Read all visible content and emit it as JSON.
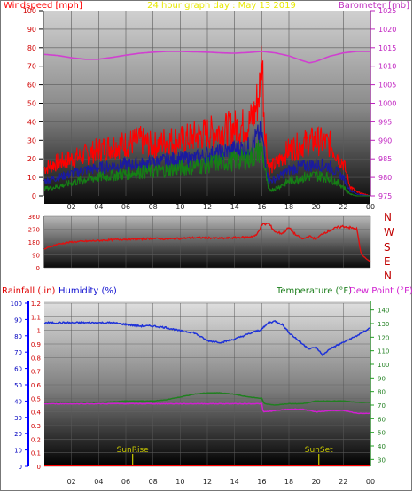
{
  "header": {
    "wind_label": "Windspeed [mph]",
    "title": "24 hour graph day : May 13 2019",
    "baro_label": "Barometer [mb]"
  },
  "wind_direction_letters": [
    "N",
    "W",
    "S",
    "E",
    "N"
  ],
  "lower_labels": {
    "rain": "Rainfall (.in)",
    "humidity": "Humidity (%)",
    "temperature": "Temperature (°F)",
    "dewpoint": "Dew Point (°F)"
  },
  "sun_labels": {
    "sunrise": "SunRise",
    "sunset": "SunSet"
  },
  "colors": {
    "wind_gust": "#ff0000",
    "wind_avg": "#1a1aa0",
    "wind_low": "#158015",
    "barometer": "#d040d0",
    "wind_dir": "#e01010",
    "humidity": "#1e32d8",
    "temperature": "#208020",
    "dewpoint": "#d020d0",
    "rain": "#ff0000",
    "title": "#e8e800",
    "sun": "#c8c800"
  },
  "chart_data": [
    {
      "type": "line",
      "title": "24 hour graph day : May 13 2019",
      "ylabel": "Windspeed [mph]",
      "y2label": "Barometer [mb]",
      "x_ticks": [
        "02",
        "04",
        "06",
        "08",
        "10",
        "12",
        "14",
        "16",
        "18",
        "20",
        "22",
        "00"
      ],
      "y_ticks": [
        "0",
        "10",
        "20",
        "30",
        "40",
        "50",
        "60",
        "70",
        "80",
        "90",
        "100"
      ],
      "y2_ticks": [
        "975",
        "980",
        "985",
        "990",
        "995",
        "1000",
        "1005",
        "1010",
        "1015",
        "1020",
        "1025"
      ],
      "xlim": [
        0,
        24
      ],
      "ylim": [
        0,
        100
      ],
      "y2lim": [
        975,
        1025
      ],
      "series": [
        {
          "axis": "left",
          "color": "#ff0000",
          "x": [
            0,
            1,
            2,
            3,
            4,
            5,
            6,
            7,
            8,
            9,
            10,
            11,
            12,
            13,
            14,
            15,
            15.5,
            15.9,
            16,
            16.2,
            16.5,
            17,
            18,
            19,
            20,
            21,
            22,
            22.5,
            23,
            23.5,
            24
          ],
          "y": [
            15,
            18,
            20,
            22,
            25,
            27,
            28,
            30,
            27,
            30,
            30,
            32,
            34,
            35,
            37,
            38,
            45,
            60,
            80,
            40,
            15,
            17,
            25,
            28,
            30,
            28,
            18,
            5,
            2,
            1,
            0
          ]
        },
        {
          "axis": "left",
          "color": "#1a1aa0",
          "x": [
            0,
            1,
            2,
            3,
            4,
            5,
            6,
            7,
            8,
            9,
            10,
            11,
            12,
            13,
            14,
            15,
            15.5,
            16,
            16.2,
            16.5,
            17,
            18,
            19,
            20,
            21,
            22,
            22.5,
            23,
            24
          ],
          "y": [
            8,
            10,
            12,
            14,
            15,
            16,
            17,
            17,
            18,
            19,
            20,
            20,
            22,
            23,
            25,
            26,
            30,
            34,
            22,
            8,
            9,
            14,
            16,
            17,
            16,
            10,
            3,
            1,
            0
          ]
        },
        {
          "axis": "left",
          "color": "#158015",
          "x": [
            0,
            1,
            2,
            3,
            4,
            5,
            6,
            7,
            8,
            9,
            10,
            11,
            12,
            13,
            14,
            15,
            15.5,
            16,
            16.2,
            16.5,
            17,
            18,
            19,
            20,
            21,
            22,
            22.5,
            23,
            24
          ],
          "y": [
            4,
            5,
            7,
            9,
            10,
            11,
            12,
            13,
            13,
            14,
            15,
            16,
            17,
            18,
            19,
            20,
            22,
            26,
            16,
            3,
            4,
            8,
            10,
            11,
            10,
            5,
            1,
            0,
            0
          ]
        },
        {
          "axis": "right",
          "color": "#d040d0",
          "x": [
            0,
            1,
            2,
            3,
            4,
            5,
            6,
            7,
            8,
            9,
            10,
            11,
            12,
            13,
            14,
            15,
            16,
            17,
            18,
            19,
            19.5,
            20,
            21,
            22,
            23,
            24
          ],
          "y": [
            1013.2,
            1012.9,
            1012.3,
            1011.9,
            1011.9,
            1012.4,
            1013.0,
            1013.5,
            1013.8,
            1014.0,
            1014.0,
            1013.9,
            1013.8,
            1013.6,
            1013.5,
            1013.7,
            1014.0,
            1013.6,
            1012.8,
            1011.5,
            1010.9,
            1011.3,
            1012.7,
            1013.6,
            1014.0,
            1014.0
          ]
        }
      ]
    },
    {
      "type": "line",
      "y_ticks": [
        "0",
        "90",
        "180",
        "270",
        "360"
      ],
      "ylim": [
        0,
        360
      ],
      "xlim": [
        0,
        24
      ],
      "series": [
        {
          "name": "wind direction",
          "color": "#e01010",
          "x": [
            0,
            0.5,
            1,
            2,
            3,
            4,
            5,
            6,
            7,
            8,
            9,
            10,
            11,
            12,
            13,
            14,
            15,
            15.6,
            16,
            16.5,
            17,
            17.5,
            18,
            18.5,
            19,
            19.5,
            20,
            20.5,
            21,
            21.5,
            22,
            22.5,
            23,
            23.3,
            23.6,
            24
          ],
          "y": [
            130,
            150,
            165,
            180,
            185,
            190,
            195,
            200,
            200,
            205,
            200,
            205,
            210,
            210,
            205,
            210,
            215,
            225,
            300,
            310,
            250,
            240,
            280,
            230,
            200,
            220,
            200,
            240,
            260,
            280,
            290,
            280,
            270,
            100,
            70,
            40
          ]
        }
      ]
    },
    {
      "type": "line",
      "xlim": [
        0,
        24
      ],
      "x_ticks": [
        "02",
        "04",
        "06",
        "08",
        "10",
        "12",
        "14",
        "16",
        "18",
        "20",
        "22",
        "00"
      ],
      "y_ticks": [
        "0",
        "10",
        "20",
        "30",
        "40",
        "50",
        "60",
        "70",
        "80",
        "90",
        "100"
      ],
      "rain_ticks": [
        "0",
        "0.1",
        "0.2",
        "0.3",
        "0.4",
        "0.5",
        "0.6",
        "0.7",
        "0.8",
        "0.9",
        "1",
        "1.1",
        "1.2"
      ],
      "temp_ticks": [
        "30",
        "40",
        "50",
        "60",
        "70",
        "80",
        "90",
        "100",
        "110",
        "120",
        "130",
        "140"
      ],
      "ylim": [
        0,
        100
      ],
      "rain_lim": [
        0,
        1.2
      ],
      "temp_lim": [
        25,
        145
      ],
      "series": [
        {
          "axis": "left",
          "color": "#1e32d8",
          "x": [
            0,
            1,
            2,
            3,
            4,
            5,
            6,
            7,
            8,
            9,
            10,
            11,
            12,
            13,
            14,
            15,
            16,
            16.5,
            17,
            17.5,
            18,
            19,
            19.5,
            20,
            20.5,
            21,
            22,
            23,
            24
          ],
          "y": [
            88,
            88,
            88,
            88,
            88,
            88,
            87,
            86,
            86,
            85,
            83,
            82,
            77,
            76,
            78,
            81,
            84,
            88,
            89,
            87,
            82,
            75,
            72,
            73,
            68,
            72,
            76,
            80,
            85
          ]
        },
        {
          "axis": "temp",
          "color": "#208020",
          "x": [
            0,
            2,
            4,
            6,
            8,
            9,
            10,
            11,
            12,
            13,
            14,
            15,
            16,
            16.2,
            17,
            18,
            19,
            20,
            21,
            22,
            23,
            24
          ],
          "y": [
            72,
            72,
            72,
            73,
            73,
            74,
            76,
            78,
            79,
            79,
            78,
            76,
            75,
            71,
            70,
            71,
            71,
            73,
            73,
            73,
            72,
            72
          ]
        },
        {
          "axis": "temp",
          "color": "#d020d0",
          "x": [
            0,
            2,
            4,
            6,
            8,
            10,
            12,
            14,
            15,
            16,
            16.1,
            17,
            18,
            19,
            20,
            21,
            22,
            23,
            24
          ],
          "y": [
            71,
            71,
            71,
            71,
            71,
            71,
            71,
            71,
            71,
            71,
            65,
            66,
            67,
            67,
            65,
            66,
            66,
            64,
            64
          ]
        },
        {
          "axis": "rain",
          "color": "#ff0000",
          "x": [
            0,
            24
          ],
          "y": [
            0,
            0
          ]
        }
      ],
      "events": [
        {
          "label": "SunRise",
          "hour": 6.5
        },
        {
          "label": "SunSet",
          "hour": 20.2
        }
      ]
    }
  ]
}
